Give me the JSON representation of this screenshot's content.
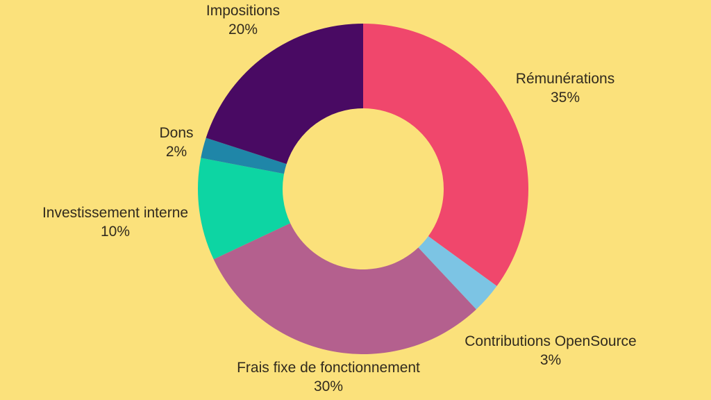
{
  "background_color": "#FBE17B",
  "text_color": "#312A1E",
  "chart_data": {
    "type": "pie",
    "subtype": "donut",
    "title": "",
    "legend_position": "labels-around-chart",
    "direction": "clockwise",
    "start_angle": "12-oclock",
    "total": 100,
    "slices": [
      {
        "id": "remunerations",
        "label": "Rémunérations",
        "value": 35,
        "pct_label": "35%",
        "color": "#F0476C"
      },
      {
        "id": "contributions-opensource",
        "label": "Contributions OpenSource",
        "value": 3,
        "pct_label": "3%",
        "color": "#7CC4E4"
      },
      {
        "id": "frais-fixe-fonctionnement",
        "label": "Frais fixe de fonctionnement",
        "value": 30,
        "pct_label": "30%",
        "color": "#B4608E"
      },
      {
        "id": "investissement-interne",
        "label": "Investissement interne",
        "value": 10,
        "pct_label": "10%",
        "color": "#0DD5A3"
      },
      {
        "id": "dons",
        "label": "Dons",
        "value": 2,
        "pct_label": "2%",
        "color": "#1F86A8"
      },
      {
        "id": "impositions",
        "label": "Impositions",
        "value": 20,
        "pct_label": "20%",
        "color": "#490A63"
      }
    ]
  }
}
